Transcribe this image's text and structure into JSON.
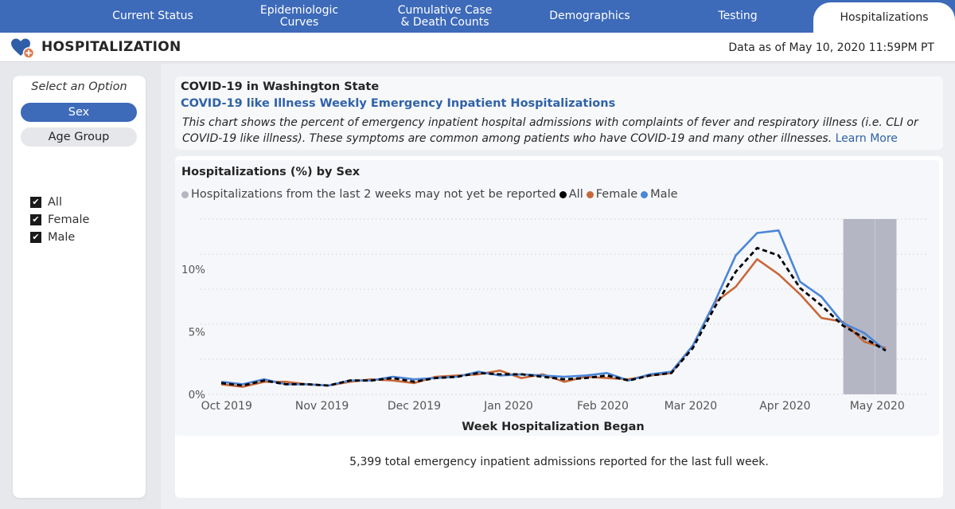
{
  "nav": {
    "tabs": [
      {
        "label": "Current Status",
        "active": false
      },
      {
        "label": "Epidemiologic\nCurves",
        "active": false
      },
      {
        "label": "Cumulative Case\n& Death Counts",
        "active": false
      },
      {
        "label": "Demographics",
        "active": false
      },
      {
        "label": "Testing",
        "active": false
      },
      {
        "label": "Hospitalizations",
        "active": true
      }
    ]
  },
  "header": {
    "icon": "heart-plus-icon",
    "title": "HOSPITALIZATION",
    "data_as_of": "Data as of May 10, 2020 11:59PM PT"
  },
  "sidebar": {
    "label": "Select an Option",
    "options": [
      {
        "label": "Sex",
        "selected": true
      },
      {
        "label": "Age Group",
        "selected": false
      }
    ],
    "filters": [
      {
        "label": "All",
        "checked": true
      },
      {
        "label": "Female",
        "checked": true
      },
      {
        "label": "Male",
        "checked": true
      }
    ]
  },
  "info": {
    "title": "COVID-19 in Washington State",
    "subtitle": "COVID-19 like Illness Weekly Emergency Inpatient Hospitalizations",
    "description": "This chart shows the percent of emergency inpatient hospital admissions with complaints of fever and respiratory illness (i.e. CLI or COVID-19 like illness). These symptoms are common among patients who have COVID-19 and many other illnesses.",
    "learn_more": "Learn More"
  },
  "colors": {
    "brand": "#3d6ab9",
    "all": "#000000",
    "female": "#c8683a",
    "male": "#4a86d8",
    "unreported": "#b4b6c4"
  },
  "footnote": "5,399 total emergency inpatient admissions reported for the last full week.",
  "chart_data": {
    "type": "line",
    "title": "Hospitalizations (%) by Sex",
    "xlabel": "Week Hospitalization Began",
    "ylabel": "",
    "ylim": [
      0,
      14
    ],
    "yticks": [
      0,
      5,
      10
    ],
    "ytick_labels": [
      "0%",
      "5%",
      "10%"
    ],
    "grid": true,
    "legend_position": "top-left",
    "legend": [
      {
        "name": "Hospitalizations from the last 2 weeks may not yet be reported",
        "color": "#b4b6c4"
      },
      {
        "name": "All",
        "color": "#000000"
      },
      {
        "name": "Female",
        "color": "#c8683a"
      },
      {
        "name": "Male",
        "color": "#4a86d8"
      }
    ],
    "xtick_labels": [
      "Oct 2019",
      "Nov 2019",
      "Dec 2019",
      "Jan 2020",
      "Feb 2020",
      "Mar 2020",
      "Apr 2020",
      "May 2020"
    ],
    "xtick_week_index": [
      0.25,
      4.7,
      9.0,
      13.4,
      17.8,
      21.9,
      26.3,
      30.6
    ],
    "weeks": 32,
    "unreported_weeks": [
      30,
      31
    ],
    "series": [
      {
        "name": "All",
        "style": "dashed",
        "values": [
          0.9,
          0.7,
          1.1,
          0.8,
          0.8,
          0.7,
          1.1,
          1.1,
          1.3,
          1.0,
          1.3,
          1.4,
          1.7,
          1.6,
          1.6,
          1.4,
          1.2,
          1.3,
          1.5,
          1.1,
          1.5,
          1.7,
          3.7,
          6.9,
          9.8,
          11.7,
          11.1,
          8.5,
          7.1,
          5.5,
          4.5,
          3.5
        ]
      },
      {
        "name": "Female",
        "style": "solid",
        "values": [
          0.8,
          0.6,
          1.0,
          1.0,
          0.8,
          0.7,
          1.0,
          1.2,
          1.1,
          0.9,
          1.4,
          1.5,
          1.6,
          1.9,
          1.3,
          1.6,
          1.0,
          1.4,
          1.3,
          1.2,
          1.5,
          1.7,
          3.9,
          7.3,
          8.6,
          10.8,
          9.6,
          8.0,
          6.1,
          5.8,
          4.2,
          3.7
        ]
      },
      {
        "name": "Male",
        "style": "solid",
        "values": [
          1.0,
          0.8,
          1.2,
          0.8,
          0.8,
          0.7,
          1.1,
          1.1,
          1.4,
          1.2,
          1.3,
          1.4,
          1.8,
          1.5,
          1.6,
          1.5,
          1.4,
          1.5,
          1.7,
          1.1,
          1.6,
          1.8,
          3.9,
          7.3,
          11.1,
          12.9,
          13.1,
          9.0,
          7.8,
          5.7,
          4.9,
          3.5
        ]
      }
    ]
  }
}
